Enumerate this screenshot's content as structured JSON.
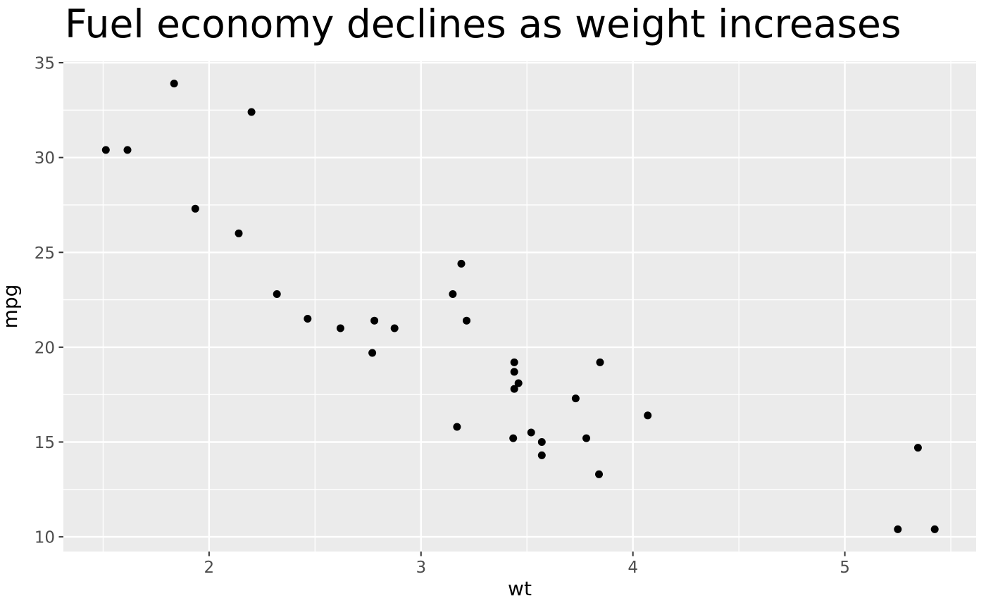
{
  "chart_data": {
    "type": "scatter",
    "title": "Fuel economy declines as weight increases",
    "xlabel": "wt",
    "ylabel": "mpg",
    "xlim": [
      1.3125,
      5.6195
    ],
    "ylim": [
      9.225,
      35.075
    ],
    "x_major_ticks": [
      2,
      3,
      4,
      5
    ],
    "x_minor_ticks": [
      1.5,
      2.5,
      3.5,
      4.5,
      5.5
    ],
    "y_major_ticks": [
      10,
      15,
      20,
      25,
      30,
      35
    ],
    "y_minor_ticks": [
      12.5,
      17.5,
      22.5,
      27.5,
      32.5
    ],
    "grid": true,
    "legend": false,
    "points": [
      [
        2.62,
        21.0
      ],
      [
        2.875,
        21.0
      ],
      [
        2.32,
        22.8
      ],
      [
        3.215,
        21.4
      ],
      [
        3.44,
        18.7
      ],
      [
        3.46,
        18.1
      ],
      [
        3.57,
        14.3
      ],
      [
        3.19,
        24.4
      ],
      [
        3.15,
        22.8
      ],
      [
        3.44,
        19.2
      ],
      [
        3.44,
        17.8
      ],
      [
        4.07,
        16.4
      ],
      [
        3.73,
        17.3
      ],
      [
        3.78,
        15.2
      ],
      [
        5.25,
        10.4
      ],
      [
        5.424,
        10.4
      ],
      [
        5.345,
        14.7
      ],
      [
        2.2,
        32.4
      ],
      [
        1.615,
        30.4
      ],
      [
        1.835,
        33.9
      ],
      [
        2.465,
        21.5
      ],
      [
        3.52,
        15.5
      ],
      [
        3.435,
        15.2
      ],
      [
        3.84,
        13.3
      ],
      [
        3.845,
        19.2
      ],
      [
        1.935,
        27.3
      ],
      [
        2.14,
        26.0
      ],
      [
        1.513,
        30.4
      ],
      [
        3.17,
        15.8
      ],
      [
        2.77,
        19.7
      ],
      [
        3.57,
        15.0
      ],
      [
        2.78,
        21.4
      ]
    ],
    "style": {
      "background": "#FFFFFF",
      "panel_bg": "#EBEBEB",
      "grid_color": "#FFFFFF",
      "point_color": "#000000",
      "title_color": "#000000",
      "axis_title_color": "#000000",
      "tick_label_color": "#4D4D4D",
      "tick_mark_color": "#333333"
    }
  }
}
